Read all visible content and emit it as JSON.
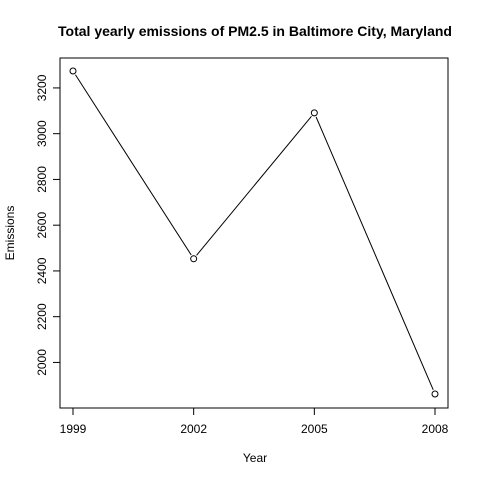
{
  "chart_data": {
    "type": "line",
    "title": "Total yearly emissions of PM2.5 in Baltimore City, Maryland",
    "xlabel": "Year",
    "ylabel": "Emissions",
    "x": [
      1999,
      2002,
      2005,
      2008
    ],
    "series": [
      {
        "values": [
          3274,
          2453,
          3091,
          1862
        ]
      }
    ],
    "x_ticks": [
      1999,
      2002,
      2005,
      2008
    ],
    "y_ticks": [
      2000,
      2200,
      2400,
      2600,
      2800,
      3000,
      3200
    ],
    "xlim": [
      1999,
      2008
    ],
    "ylim": [
      1862,
      3274
    ],
    "grid": false,
    "legend": "none",
    "colors": {
      "line": "#000000",
      "marker": "#000000",
      "background": "#ffffff"
    }
  }
}
